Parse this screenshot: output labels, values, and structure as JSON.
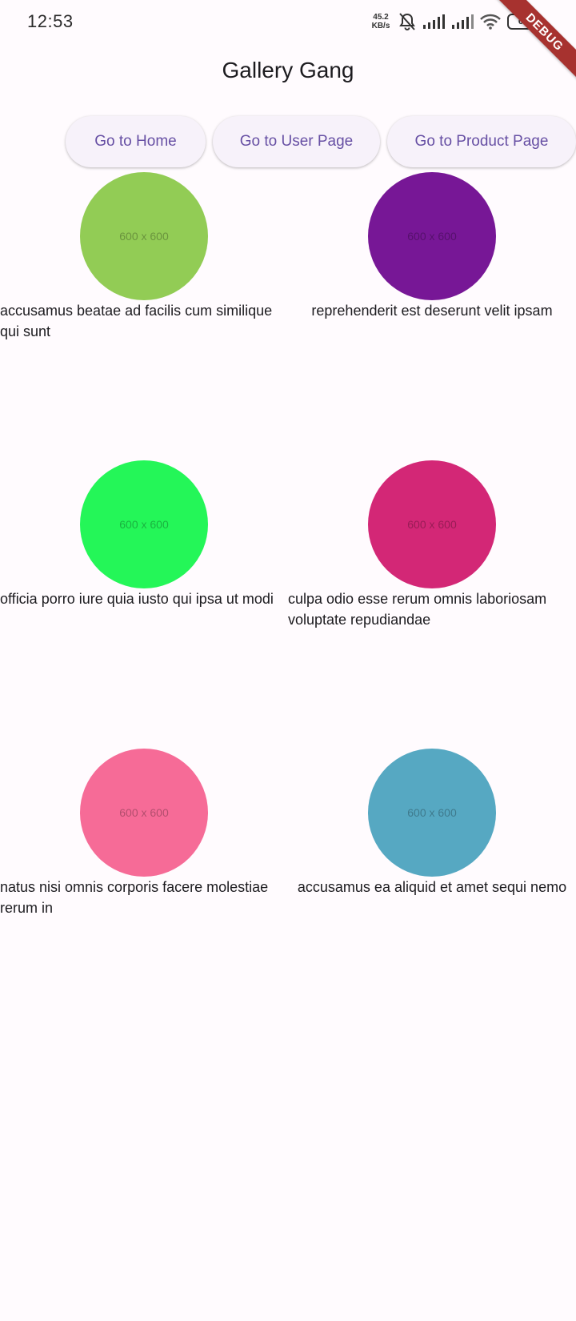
{
  "status_bar": {
    "time": "12:53",
    "net_speed_value": "45.2",
    "net_speed_unit": "KB/s",
    "battery": "60",
    "icons": [
      "mute-bell-icon",
      "signal-icon",
      "signal-icon",
      "wifi-icon",
      "battery-icon"
    ]
  },
  "debug_banner": "DEBUG",
  "app_bar": {
    "title": "Gallery Gang"
  },
  "nav": {
    "home_label": "Go to Home",
    "user_label": "Go to User Page",
    "product_label": "Go to Product Page"
  },
  "gallery": {
    "items": [
      {
        "image_label": "600 x 600",
        "color": "#92cc55",
        "caption": "accusamus beatae ad facilis cum similique qui sunt"
      },
      {
        "image_label": "600 x 600",
        "color": "#771796",
        "caption": "reprehenderit est deserunt velit ipsam"
      },
      {
        "image_label": "600 x 600",
        "color": "#24f658",
        "caption": "officia porro iure quia iusto qui ipsa ut modi"
      },
      {
        "image_label": "600 x 600",
        "color": "#d32776",
        "caption": "culpa odio esse rerum omnis laboriosam voluptate repudiandae"
      },
      {
        "image_label": "600 x 600",
        "color": "#f66b97",
        "caption": "natus nisi omnis corporis facere molestiae rerum in"
      },
      {
        "image_label": "600 x 600",
        "color": "#56a8c2",
        "caption": "accusamus ea aliquid et amet sequi nemo"
      }
    ]
  }
}
